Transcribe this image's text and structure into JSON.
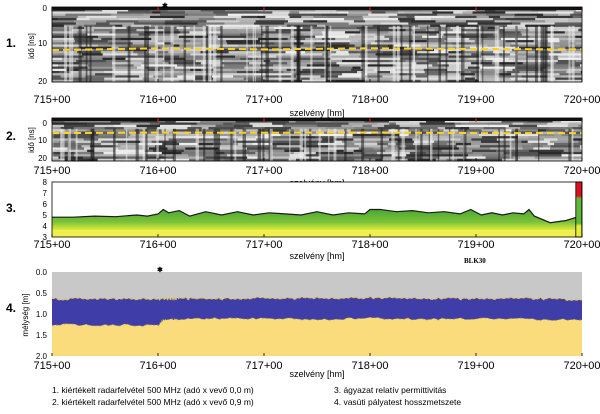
{
  "chart_data": [
    {
      "id": "1",
      "type": "heatmap",
      "panel_number": "1.",
      "title": "",
      "xlabel": "szelvény [hm]",
      "ylabel": "idő [ns]",
      "x_ticks": [
        "715+00",
        "716+00",
        "717+00",
        "718+00",
        "719+00",
        "720+00"
      ],
      "xlim": [
        715,
        720
      ],
      "ylim": [
        0,
        20
      ],
      "y_inverted": true,
      "y_ticks": [
        0,
        10,
        20
      ],
      "overlay_series": [
        {
          "style": "yellow-dashed",
          "x": [
            715,
            716,
            717,
            718,
            719,
            720
          ],
          "y": [
            11.5,
            11.0,
            11.3,
            11.0,
            11.2,
            11.3
          ]
        }
      ]
    },
    {
      "id": "2",
      "type": "heatmap",
      "panel_number": "2.",
      "title": "",
      "xlabel": "szelvény [hm]",
      "ylabel": "idő [ns]",
      "x_ticks": [
        "715+00",
        "716+00",
        "717+00",
        "718+00",
        "719+00",
        "720+00"
      ],
      "xlim": [
        715,
        720
      ],
      "ylim": [
        0,
        20
      ],
      "y_inverted": true,
      "y_ticks": [
        0,
        10,
        20
      ],
      "overlay_series": [
        {
          "style": "yellow-dashed",
          "x": [
            715,
            716,
            717,
            718,
            719,
            720
          ],
          "y": [
            7.0,
            6.8,
            6.9,
            6.7,
            7.0,
            7.0
          ]
        }
      ]
    },
    {
      "id": "3",
      "type": "area",
      "panel_number": "3.",
      "title": "",
      "xlabel": "szelvény [hm]",
      "ylabel": "",
      "x_ticks": [
        "715+00",
        "716+00",
        "717+00",
        "718+00",
        "719+00",
        "720+00"
      ],
      "xlim": [
        715,
        720
      ],
      "ylim": [
        3,
        8
      ],
      "y_ticks": [
        3,
        4,
        5,
        6,
        7,
        8
      ],
      "grid": false,
      "colors": {
        "fill_top": "#5fb83a",
        "fill_bottom": "#e4ee3a",
        "base_band": "#f1f04a",
        "line": "#1a1a1a"
      },
      "series": [
        {
          "x": [
            715.0,
            715.2,
            715.4,
            715.6,
            715.8,
            715.9,
            716.0,
            716.05,
            716.1,
            716.2,
            716.3,
            716.45,
            716.6,
            716.75,
            716.9,
            717.05,
            717.2,
            717.35,
            717.5,
            717.65,
            717.8,
            717.95,
            718.0,
            718.1,
            718.25,
            718.4,
            718.55,
            718.7,
            718.85,
            718.95,
            719.05,
            719.15,
            719.25,
            719.35,
            719.45,
            719.5,
            719.55,
            719.7,
            719.85,
            719.95
          ],
          "y": [
            4.8,
            4.8,
            4.9,
            4.85,
            5.0,
            4.9,
            5.1,
            5.5,
            5.2,
            5.4,
            4.9,
            5.3,
            5.0,
            5.3,
            5.0,
            5.2,
            5.1,
            5.0,
            5.3,
            5.0,
            5.2,
            5.1,
            5.5,
            5.5,
            5.3,
            5.4,
            5.2,
            5.3,
            5.1,
            5.5,
            5.0,
            5.2,
            5.0,
            5.2,
            5.1,
            5.5,
            4.9,
            4.3,
            4.5,
            4.8
          ]
        }
      ],
      "legend_bar": {
        "x": 719.97,
        "range": [
          3,
          8
        ],
        "colors": [
          "#d8131f",
          "#5fb83a",
          "#e4ee3a"
        ]
      }
    },
    {
      "id": "4",
      "type": "area",
      "panel_number": "4.",
      "title": "",
      "xlabel": "szelvény [hm]",
      "ylabel": "mélység [m]",
      "x_ticks": [
        "715+00",
        "716+00",
        "717+00",
        "718+00",
        "719+00",
        "720+00"
      ],
      "xlim": [
        715,
        720
      ],
      "ylim": [
        0.0,
        2.0
      ],
      "y_inverted": true,
      "y_ticks": [
        "0.0",
        "0.5",
        "1.0",
        "1.5",
        "2.0"
      ],
      "colors": {
        "sky": "#c8c8c8",
        "layer1": "#3f3da8",
        "layer2": "#fadc7d",
        "boundary": "#e8c23a"
      },
      "series": [
        {
          "name": "",
          "x": [
            715.0,
            715.5,
            716.0,
            716.1,
            716.2,
            716.5,
            717.0,
            717.5,
            718.0,
            718.5,
            719.0,
            719.5,
            720.0
          ],
          "y": [
            0.65,
            0.63,
            0.64,
            0.64,
            0.63,
            0.64,
            0.62,
            0.63,
            0.61,
            0.63,
            0.64,
            0.63,
            0.66
          ]
        },
        {
          "name": "",
          "x": [
            715.0,
            715.5,
            716.0,
            716.05,
            716.2,
            716.5,
            717.0,
            717.5,
            718.0,
            718.5,
            719.0,
            719.5,
            720.0
          ],
          "y": [
            1.25,
            1.26,
            1.27,
            1.12,
            1.13,
            1.11,
            1.1,
            1.13,
            1.1,
            1.12,
            1.11,
            1.12,
            1.14
          ]
        }
      ],
      "annotation": "BLK30"
    }
  ],
  "legend_items": [
    "1. kiértékelt radarfelvétel 500 MHz (adó x vevő 0,0 m)",
    "2. kiértékelt radarfelvétel 500 MHz (adó x vevő 0,9 m)",
    "3. ágyazat relatív permittivitás",
    "4. vasúti pályatest hosszmetszete"
  ]
}
